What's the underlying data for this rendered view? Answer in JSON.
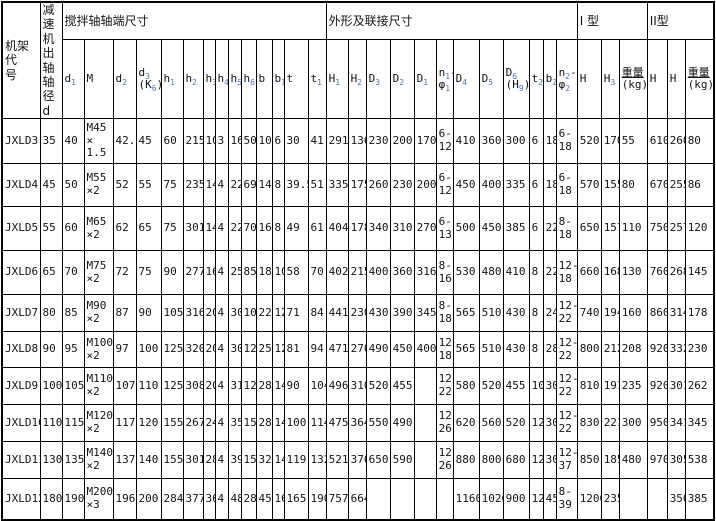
{
  "page": {
    "background": "#ffffff",
    "grid_color": "#000000",
    "text_color": "#141414",
    "subscript_color": "#4a74c0"
  },
  "table": {
    "corner": "机架代|号",
    "shaft_col": "减速|机出|轴轴|径d",
    "groups": [
      {
        "label": "搅拌轴轴端尺寸",
        "span": 14
      },
      {
        "label": "外形及联接尺寸",
        "span": 12
      },
      {
        "label": "I 型",
        "span": 3
      },
      {
        "label": "II型",
        "span": 3
      }
    ],
    "subheaders": [
      "d_1",
      "M",
      "d_2",
      "d_3|(K_6)",
      "h_1",
      "h_2",
      "h_3",
      "h_4",
      "h_5",
      "h_6",
      "b",
      "b_1",
      "t",
      "t_1",
      "H_1",
      "H_2",
      "D_3",
      "D_2",
      "D_1",
      "n_1-|φ_1",
      "D_4",
      "D_5",
      "D_6|(H_9)",
      "t_2",
      "b_2",
      "n_2-|φ_2",
      "H",
      "H_3",
      "重量|(kg)",
      "H",
      "H",
      "重量|(kg)"
    ],
    "rows": [
      [
        "JXLD3",
        "35",
        "40",
        "M45|×|1.5",
        "42.8",
        "45",
        "60",
        "215",
        "10",
        "3",
        "16",
        "50",
        "10",
        "6",
        "30",
        "41",
        "291",
        "136",
        "230",
        "200",
        "170",
        "6-|12",
        "410",
        "360",
        "300",
        "6",
        "18",
        "6-|18",
        "520",
        "170",
        "55",
        "610",
        "260",
        "80"
      ],
      [
        "JXLD4",
        "45",
        "50",
        "M55|×2",
        "52",
        "55",
        "75",
        "235",
        "14",
        "4",
        "22",
        "69",
        "14",
        "8",
        "39.5",
        "51",
        "335",
        "175",
        "260",
        "230",
        "200",
        "6-|12",
        "450",
        "400",
        "335",
        "6",
        "18",
        "6-|18",
        "570",
        "155",
        "80",
        "670",
        "255",
        "86"
      ],
      [
        "JXLD5",
        "55",
        "60",
        "M65|×2",
        "62",
        "65",
        "75",
        "301",
        "14",
        "4",
        "22",
        "70",
        "16",
        "8",
        "49",
        "61",
        "404",
        "178",
        "340",
        "310",
        "270",
        "6-|13",
        "500",
        "450",
        "385",
        "6",
        "22",
        "8-|18",
        "650",
        "157",
        "110",
        "750",
        "257",
        "120"
      ],
      [
        "JXLD6",
        "65",
        "70",
        "M75|×2",
        "72",
        "75",
        "90",
        "277",
        "16",
        "4",
        "25",
        "85",
        "18",
        "10",
        "58",
        "70",
        "402",
        "215",
        "400",
        "360",
        "316",
        "8-|16",
        "530",
        "480",
        "410",
        "8",
        "22",
        "12-|18",
        "660",
        "168",
        "130",
        "760",
        "268",
        "145"
      ],
      [
        "JXLD7",
        "80",
        "85",
        "M90|×2",
        "87",
        "90",
        "105",
        "316",
        "20",
        "4",
        "30",
        "100",
        "22",
        "12",
        "71",
        "84",
        "441",
        "230",
        "430",
        "390",
        "345",
        "8-|18",
        "565",
        "510",
        "430",
        "8",
        "24",
        "12-|22",
        "740",
        "194",
        "160",
        "860",
        "314",
        "178"
      ],
      [
        "JXLD8",
        "90",
        "95",
        "M100|×2",
        "97",
        "100",
        "125",
        "320",
        "20",
        "4",
        "30",
        "120",
        "25",
        "12",
        "81",
        "94",
        "471",
        "276",
        "490",
        "450",
        "400",
        "12-|18",
        "565",
        "510",
        "430",
        "8",
        "28",
        "12-|22",
        "800",
        "212",
        "208",
        "920",
        "332",
        "230"
      ],
      [
        "JXLD9",
        "100",
        "105",
        "M110|×2",
        "107",
        "110",
        "125",
        "308",
        "20",
        "4",
        "31",
        "120",
        "28",
        "14",
        "90",
        "104",
        "496",
        "310",
        "520",
        "455",
        "",
        "12-|22",
        "580",
        "520",
        "455",
        "10",
        "30",
        "12-|22",
        "810",
        "191",
        "235",
        "920",
        "301",
        "262"
      ],
      [
        "JXLD10",
        "110",
        "115",
        "M120|×2",
        "117",
        "120",
        "155",
        "267",
        "24",
        "4",
        "35",
        "150",
        "28",
        "14",
        "100",
        "114",
        "475",
        "364",
        "550",
        "490",
        "",
        "12-|26",
        "620",
        "560",
        "520",
        "12",
        "30",
        "12-|22",
        "830",
        "221",
        "300",
        "950",
        "341",
        "345"
      ],
      [
        "JXLD11",
        "130",
        "135",
        "M140|×2",
        "137",
        "140",
        "155",
        "301",
        "28",
        "4",
        "39",
        "150",
        "32",
        "14",
        "119",
        "132",
        "521",
        "376",
        "650",
        "590",
        "",
        "12-|26",
        "880",
        "800",
        "680",
        "12",
        "30",
        "12-|37",
        "850",
        "185",
        "480",
        "970",
        "305",
        "538"
      ],
      [
        "JXLD12",
        "180",
        "190",
        "M200|×3",
        "196",
        "200",
        "284",
        "377",
        "36",
        "4",
        "48",
        "280",
        "45",
        "16",
        "165",
        "190",
        "757",
        "664",
        "",
        "",
        "",
        "",
        "1160",
        "1020",
        "900",
        "12",
        "45",
        "8-|39",
        "1200",
        "235",
        "",
        "",
        "350",
        "385"
      ]
    ]
  }
}
